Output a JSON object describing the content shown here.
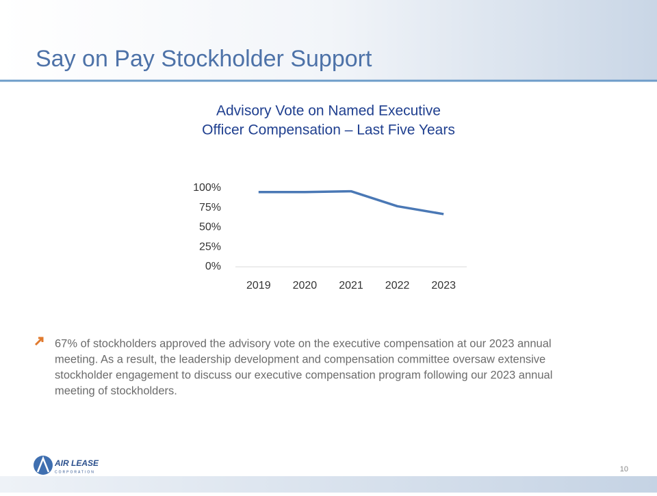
{
  "slide": {
    "title": "Say on Pay Stockholder Support",
    "page_number": "10"
  },
  "chart_data": {
    "type": "line",
    "title": [
      "Advisory Vote on Named Executive",
      "Officer Compensation – Last Five Years"
    ],
    "categories": [
      "2019",
      "2020",
      "2021",
      "2022",
      "2023"
    ],
    "series": [
      {
        "name": "Say on Pay",
        "color": "#4a78b5",
        "values": [
          95,
          95,
          96,
          77,
          67
        ]
      }
    ],
    "ylim": [
      0,
      100
    ],
    "yticks": [
      {
        "value": 0,
        "label": "0%"
      },
      {
        "value": 25,
        "label": "25%"
      },
      {
        "value": 50,
        "label": "50%"
      },
      {
        "value": 75,
        "label": "75%"
      },
      {
        "value": 100,
        "label": "100%"
      }
    ],
    "grid": false,
    "legend": false
  },
  "bullet": {
    "lines": [
      "67% of stockholders approved the advisory vote on the executive compensation at our 2023 annual",
      "meeting. As a result, the leadership development and compensation committee oversaw extensive",
      "stockholder engagement to discuss our executive compensation program following our 2023 annual",
      "meeting of stockholders."
    ]
  },
  "logo": {
    "name": "AIR LEASE",
    "subtitle": "CORPORATION"
  }
}
